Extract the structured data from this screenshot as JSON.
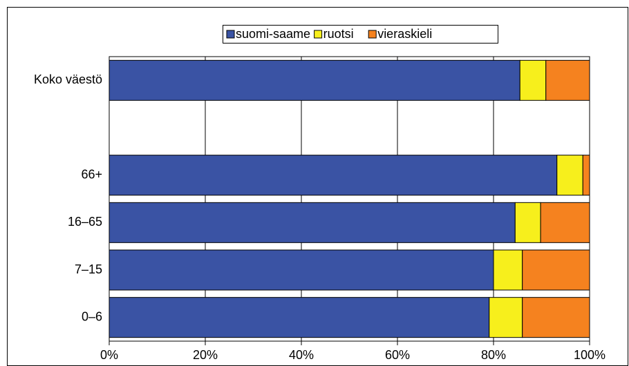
{
  "chart_data": {
    "type": "stacked-bar-horizontal",
    "categories": [
      "Koko väestö",
      null,
      "66+",
      "16–65",
      "7–15",
      "0–6"
    ],
    "series": [
      {
        "name": "suomi-saame",
        "color": "#3a53a4",
        "values": [
          85.5,
          null,
          93.2,
          84.5,
          80.0,
          79.1
        ]
      },
      {
        "name": "ruotsi",
        "color": "#f7ef1c",
        "values": [
          5.4,
          null,
          5.4,
          5.3,
          6.0,
          6.9
        ]
      },
      {
        "name": "vieraskieli",
        "color": "#f5821f",
        "values": [
          9.1,
          null,
          1.4,
          10.2,
          14.0,
          14.0
        ]
      }
    ],
    "xlim": [
      0,
      100
    ],
    "xticks": [
      {
        "value": 0,
        "label": "0%"
      },
      {
        "value": 20,
        "label": "20%"
      },
      {
        "value": 40,
        "label": "40%"
      },
      {
        "value": 60,
        "label": "60%"
      },
      {
        "value": 80,
        "label": "80%"
      },
      {
        "value": 100,
        "label": "100%"
      }
    ],
    "grid": true,
    "legend": "top"
  }
}
